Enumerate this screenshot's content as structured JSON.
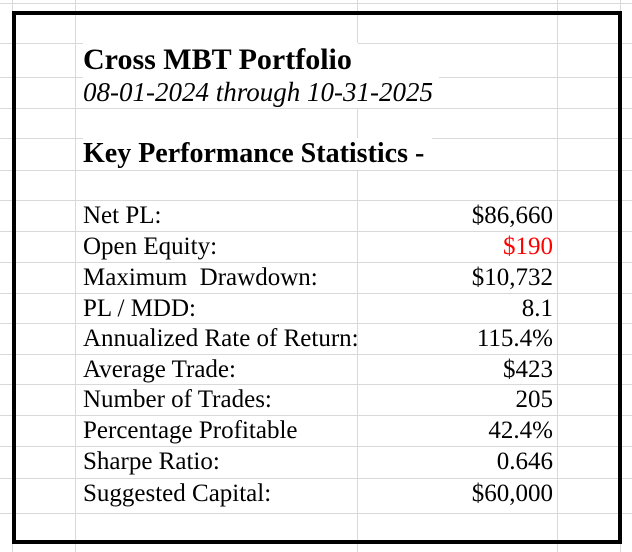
{
  "report": {
    "title": "Cross MBT Portfolio",
    "date_range": "08-01-2024 through 10-31-2025",
    "section_header": "Key Performance Statistics -",
    "stats": [
      {
        "label": "Net PL:",
        "value": "$86,660",
        "value_color": "#000000"
      },
      {
        "label": "Open Equity:",
        "value": "$190",
        "value_color": "#ff0000"
      },
      {
        "label": "Maximum  Drawdown:",
        "value": "$10,732",
        "value_color": "#000000"
      },
      {
        "label": "PL / MDD:",
        "value": "8.1",
        "value_color": "#000000"
      },
      {
        "label": "Annualized Rate of Return:",
        "value": "115.4%",
        "value_color": "#000000"
      },
      {
        "label": "Average Trade:",
        "value": "$423",
        "value_color": "#000000"
      },
      {
        "label": "Number of Trades:",
        "value": "205",
        "value_color": "#000000"
      },
      {
        "label": "Percentage Profitable",
        "value": "42.4%",
        "value_color": "#000000"
      },
      {
        "label": "Sharpe Ratio:",
        "value": "0.646",
        "value_color": "#000000"
      },
      {
        "label": "Suggested Capital:",
        "value": "$60,000",
        "value_color": "#000000"
      }
    ],
    "colors": {
      "text": "#000000",
      "highlight_value": "#ff0000",
      "gridline": "#d9d9d9",
      "border": "#000000",
      "background": "#ffffff"
    }
  }
}
